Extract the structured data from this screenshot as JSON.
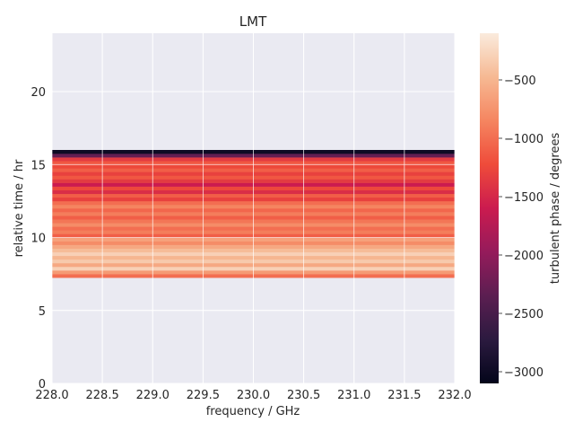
{
  "chart_data": {
    "type": "heatmap",
    "title": "LMT",
    "xlabel": "frequency / GHz",
    "ylabel": "relative time / hr",
    "colorbar_label": "turbulent phase / degrees",
    "xlim": [
      228.0,
      232.0
    ],
    "ylim": [
      0,
      24
    ],
    "x_ticks": [
      "228.0",
      "228.5",
      "229.0",
      "229.5",
      "230.0",
      "230.5",
      "231.0",
      "231.5",
      "232.0"
    ],
    "y_ticks": [
      "0",
      "5",
      "10",
      "15",
      "20"
    ],
    "colorbar_range": [
      -3100,
      -100
    ],
    "colorbar_ticks": [
      "−500",
      "−1000",
      "−1500",
      "−2000",
      "−2500",
      "−3000"
    ],
    "grid": true,
    "colormap": "rocket",
    "rows": [
      {
        "y0": 7.25,
        "y1": 7.5,
        "v": -1000
      },
      {
        "y0": 7.5,
        "y1": 7.75,
        "v": -700
      },
      {
        "y0": 7.75,
        "y1": 8.0,
        "v": -300
      },
      {
        "y0": 8.0,
        "y1": 8.25,
        "v": -600
      },
      {
        "y0": 8.25,
        "y1": 8.5,
        "v": -350
      },
      {
        "y0": 8.5,
        "y1": 8.75,
        "v": -500
      },
      {
        "y0": 8.75,
        "y1": 9.0,
        "v": -300
      },
      {
        "y0": 9.0,
        "y1": 9.25,
        "v": -450
      },
      {
        "y0": 9.25,
        "y1": 9.5,
        "v": -600
      },
      {
        "y0": 9.5,
        "y1": 9.75,
        "v": -800
      },
      {
        "y0": 9.75,
        "y1": 10.0,
        "v": -650
      },
      {
        "y0": 10.0,
        "y1": 10.25,
        "v": -1100
      },
      {
        "y0": 10.25,
        "y1": 10.5,
        "v": -900
      },
      {
        "y0": 10.5,
        "y1": 10.75,
        "v": -1000
      },
      {
        "y0": 10.75,
        "y1": 11.0,
        "v": -800
      },
      {
        "y0": 11.0,
        "y1": 11.25,
        "v": -950
      },
      {
        "y0": 11.25,
        "y1": 11.5,
        "v": -1100
      },
      {
        "y0": 11.5,
        "y1": 11.75,
        "v": -900
      },
      {
        "y0": 11.75,
        "y1": 12.0,
        "v": -1050
      },
      {
        "y0": 12.0,
        "y1": 12.25,
        "v": -850
      },
      {
        "y0": 12.25,
        "y1": 12.5,
        "v": -1000
      },
      {
        "y0": 12.5,
        "y1": 12.75,
        "v": -1300
      },
      {
        "y0": 12.75,
        "y1": 13.0,
        "v": -1100
      },
      {
        "y0": 13.0,
        "y1": 13.25,
        "v": -1450
      },
      {
        "y0": 13.25,
        "y1": 13.5,
        "v": -1250
      },
      {
        "y0": 13.5,
        "y1": 13.75,
        "v": -1600
      },
      {
        "y0": 13.75,
        "y1": 14.0,
        "v": -1350
      },
      {
        "y0": 14.0,
        "y1": 14.25,
        "v": -1150
      },
      {
        "y0": 14.25,
        "y1": 14.5,
        "v": -1300
      },
      {
        "y0": 14.5,
        "y1": 14.75,
        "v": -1100
      },
      {
        "y0": 14.75,
        "y1": 15.0,
        "v": -1250
      },
      {
        "y0": 15.0,
        "y1": 15.25,
        "v": -1150
      },
      {
        "y0": 15.25,
        "y1": 15.5,
        "v": -1350
      },
      {
        "y0": 15.5,
        "y1": 15.75,
        "v": -2300
      },
      {
        "y0": 15.75,
        "y1": 16.0,
        "v": -3000
      }
    ]
  }
}
